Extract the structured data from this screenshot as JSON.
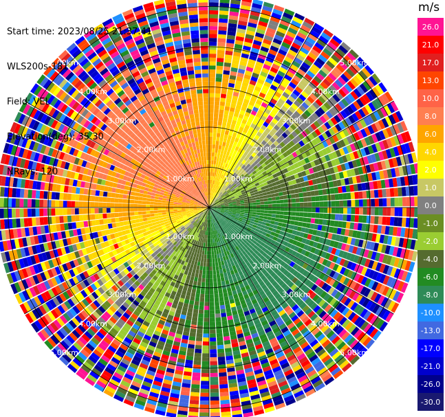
{
  "header": {
    "start_time": "Start time: 2023/08/25 21:37:41",
    "station": "WLS200s-181",
    "field": "Field: VEL",
    "elevation": "Elevation(deg): 35.30",
    "nrays": "NRays: 120"
  },
  "chart_data": {
    "type": "heatmap",
    "subtype": "polar-ppi",
    "field": "VEL",
    "units": "m/s",
    "n_rays": 120,
    "elevation_deg": 35.3,
    "range_rings_km": [
      1.0,
      2.0,
      3.0,
      4.0,
      5.0
    ],
    "ring_labels": [
      "1.00km",
      "2.00km",
      "3.00km",
      "4.00km",
      "5.00km"
    ],
    "max_range_km": 5.3,
    "spokes_deg": [
      0,
      30,
      60,
      90,
      120,
      150,
      180,
      210,
      240,
      270,
      300,
      330
    ],
    "colorbar": {
      "title": "m/s",
      "tick_labels": [
        "26.0",
        "21.0",
        "17.0",
        "13.0",
        "10.0",
        "8.0",
        "6.0",
        "4.0",
        "2.0",
        "1.0",
        "0.0",
        "-1.0",
        "-2.0",
        "-4.0",
        "-6.0",
        "-8.0",
        "-10.0",
        "-13.0",
        "-17.0",
        "-21.0",
        "-26.0",
        "-30.0"
      ],
      "colors": [
        "#ff1493",
        "#ff0000",
        "#e11f1f",
        "#ff4500",
        "#ff6347",
        "#ff7f50",
        "#ffa500",
        "#ffd700",
        "#ffff00",
        "#c8c864",
        "#808080",
        "#6b8e23",
        "#9acd32",
        "#556b2f",
        "#228b22",
        "#2e8b57",
        "#1e90ff",
        "#4169e1",
        "#0000ff",
        "#0000cd",
        "#00008b",
        "#191970"
      ]
    },
    "velocity_pattern": {
      "max_speed_ms": 8.0,
      "toward_azimuth_deg": 135,
      "notes": [
        "receding (positive) toward north-west",
        "approaching (negative) toward south-east"
      ]
    }
  }
}
